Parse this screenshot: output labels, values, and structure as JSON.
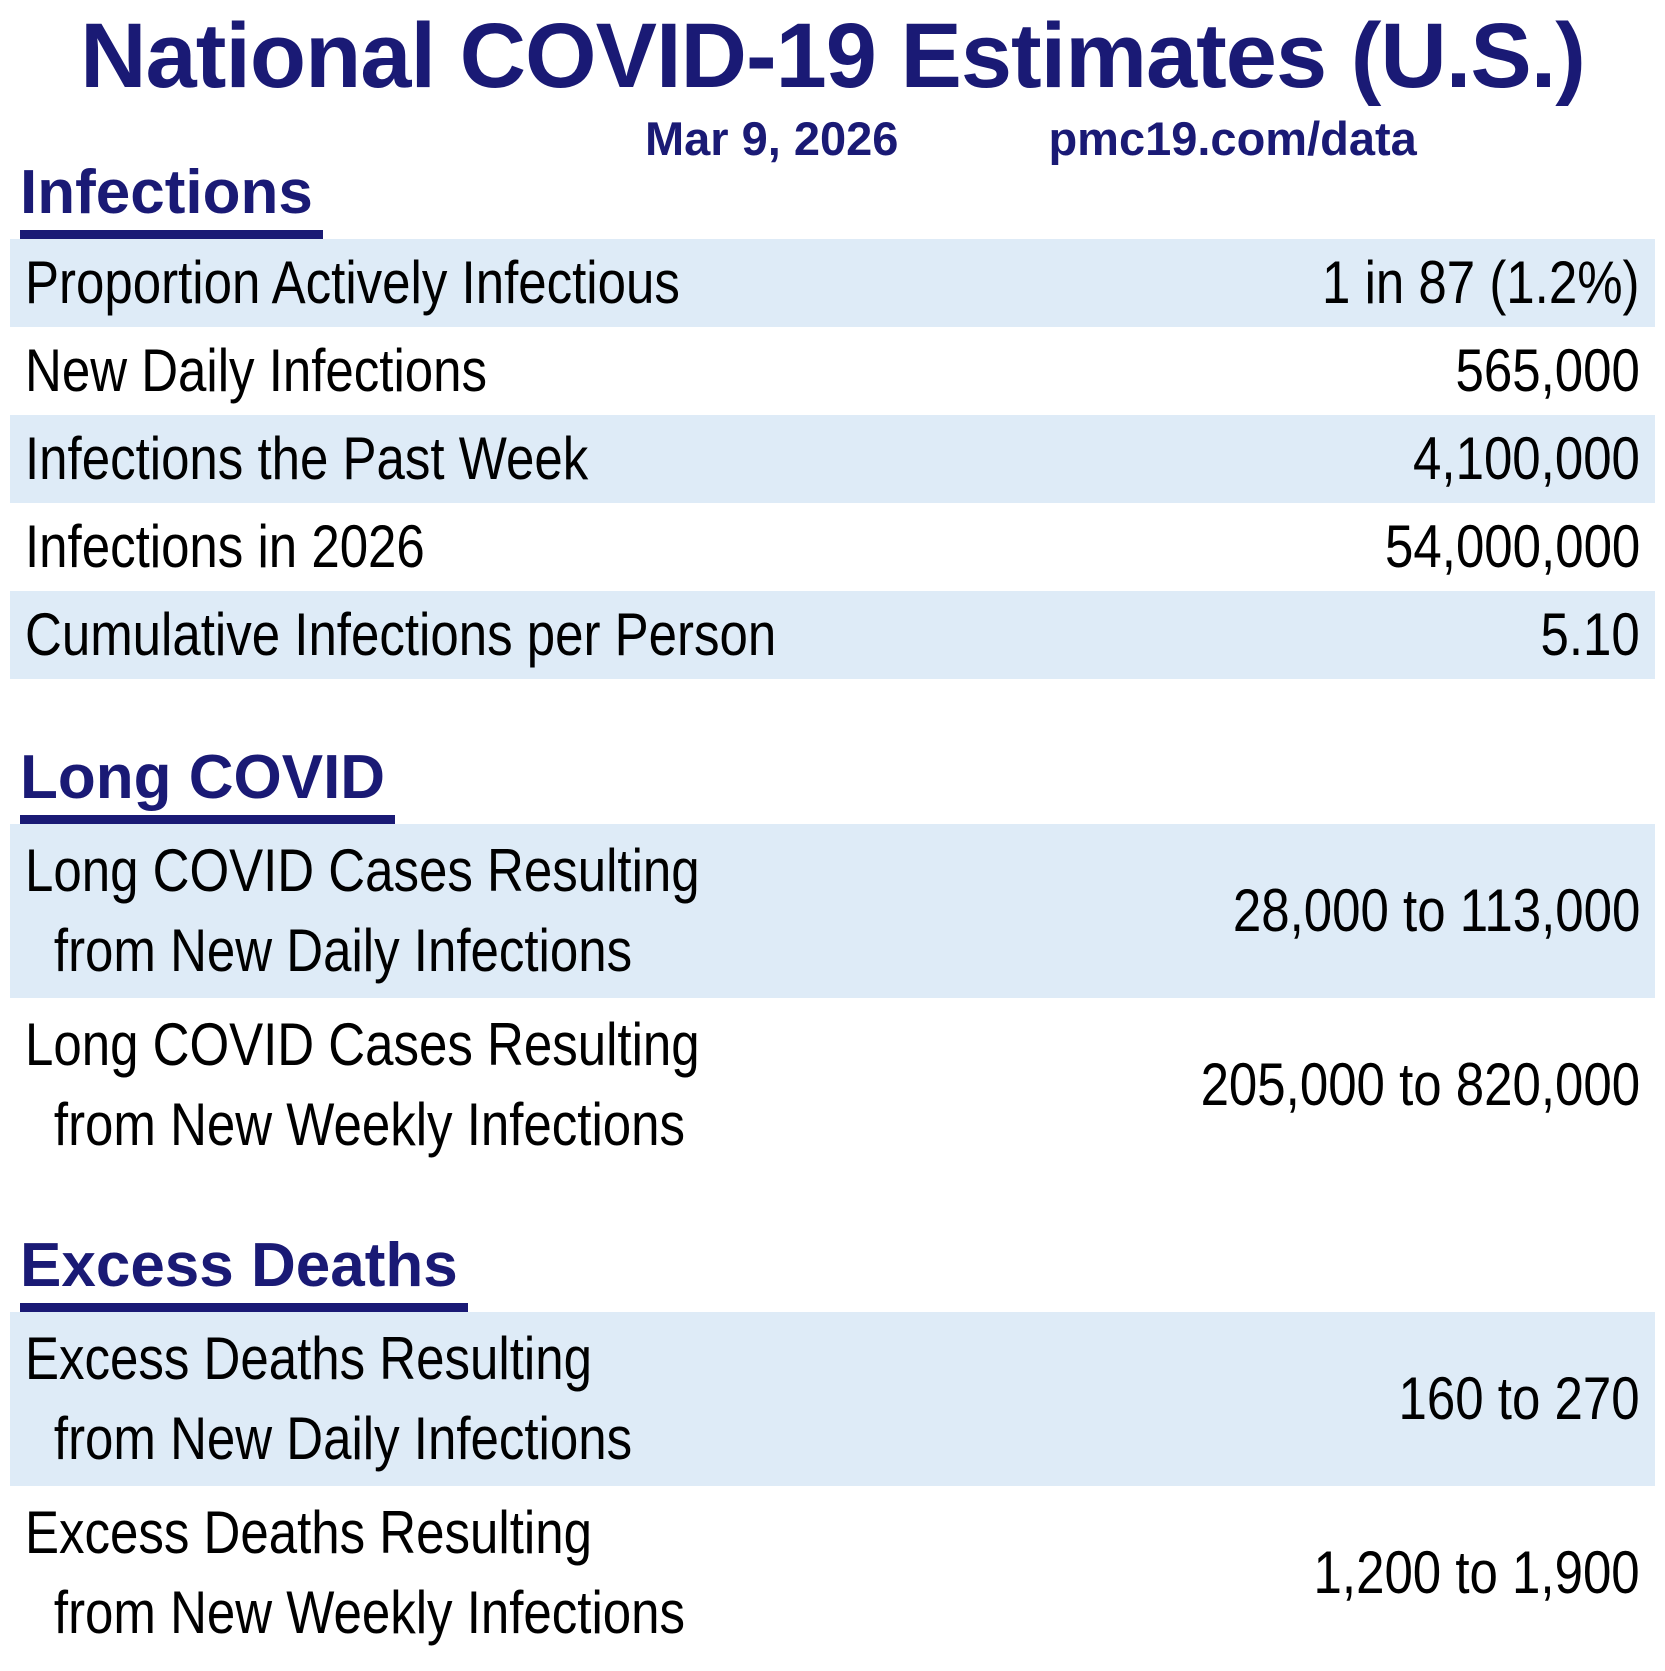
{
  "header": {
    "title": "National COVID-19 Estimates (U.S.)",
    "date": "Mar 9, 2026",
    "source": "pmc19.com/data"
  },
  "colors": {
    "heading_navy": "#1a1a75",
    "row_highlight_blue": "#deebf7",
    "body_text": "#000000",
    "background": "#ffffff"
  },
  "chart_data": {
    "type": "table",
    "title": "National COVID-19 Estimates (U.S.)",
    "date": "Mar 9, 2026",
    "source": "pmc19.com/data",
    "sections": [
      {
        "heading": "Infections",
        "rows": [
          {
            "label_lines": [
              "Proportion Actively Infectious"
            ],
            "value": "1 in 87 (1.2%)"
          },
          {
            "label_lines": [
              "New Daily Infections"
            ],
            "value": "565,000"
          },
          {
            "label_lines": [
              "Infections the Past Week"
            ],
            "value": "4,100,000"
          },
          {
            "label_lines": [
              "Infections in 2026"
            ],
            "value": "54,000,000"
          },
          {
            "label_lines": [
              "Cumulative Infections per Person"
            ],
            "value": "5.10"
          }
        ]
      },
      {
        "heading": "Long COVID",
        "rows": [
          {
            "label_lines": [
              "Long COVID Cases Resulting",
              "from New Daily Infections"
            ],
            "value": "28,000 to 113,000"
          },
          {
            "label_lines": [
              "Long COVID Cases Resulting",
              "from New Weekly Infections"
            ],
            "value": "205,000 to 820,000"
          }
        ]
      },
      {
        "heading": "Excess Deaths",
        "rows": [
          {
            "label_lines": [
              "Excess Deaths Resulting",
              "from New Daily Infections"
            ],
            "value": "160 to 270"
          },
          {
            "label_lines": [
              "Excess Deaths Resulting",
              "from New Weekly Infections"
            ],
            "value": "1,200 to 1,900"
          }
        ]
      }
    ]
  }
}
